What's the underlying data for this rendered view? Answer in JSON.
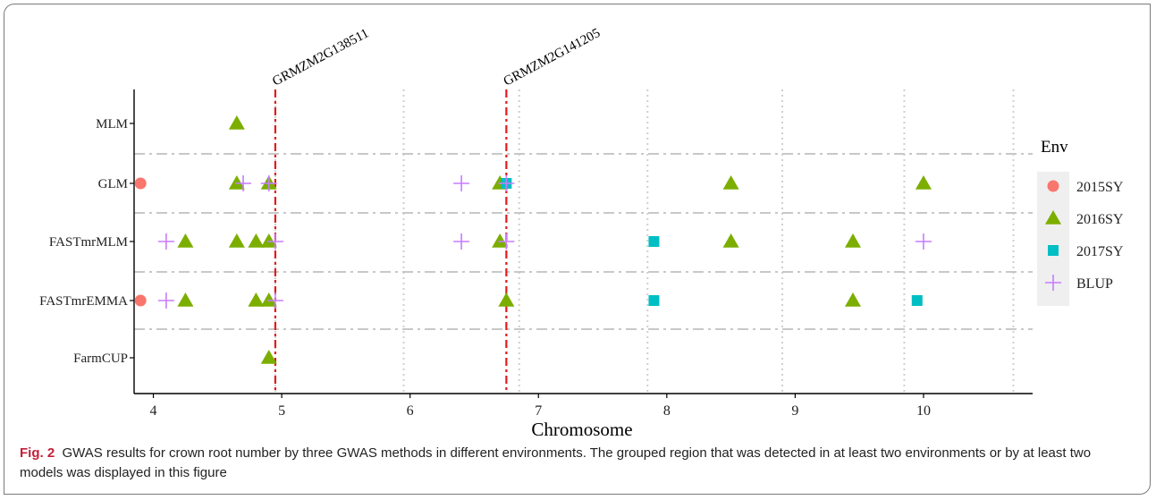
{
  "chart_data": {
    "type": "scatter",
    "title": "",
    "xlabel": "Chromosome",
    "ylabel": "",
    "xlim": [
      3.45,
      10.45
    ],
    "x_ticks": [
      4,
      5,
      6,
      7,
      8,
      9,
      10
    ],
    "x_tick_positions": [
      3.6,
      4.6,
      5.6,
      6.6,
      7.6,
      8.6,
      9.6
    ],
    "x_tick_labels": [
      "4",
      "5",
      "6",
      "7",
      "8",
      "9",
      "10"
    ],
    "categories": [
      "MLM",
      "GLM",
      "FASTmrMLM",
      "FASTmrEMMA",
      "FarmCUP"
    ],
    "grid": true,
    "legend": {
      "title": "Env",
      "position": "right",
      "entries": [
        {
          "name": "2015SY",
          "shape": "circle",
          "color": "#f8766d"
        },
        {
          "name": "2016SY",
          "shape": "triangle",
          "color": "#7cae00"
        },
        {
          "name": "2017SY",
          "shape": "square",
          "color": "#00bfc4"
        },
        {
          "name": "BLUP",
          "shape": "plus",
          "color": "#c77cff"
        }
      ]
    },
    "reference_lines": [
      {
        "label": "GRMZM2G138511",
        "x": 4.55,
        "color": "#e41a1c"
      },
      {
        "label": "GRMZM2G141205",
        "x": 6.35,
        "color": "#e41a1c"
      }
    ],
    "series": [
      {
        "name": "2015SY",
        "points": [
          {
            "x": 3.5,
            "y": "GLM"
          },
          {
            "x": 3.5,
            "y": "FASTmrEMMA"
          }
        ]
      },
      {
        "name": "2016SY",
        "points": [
          {
            "x": 4.25,
            "y": "MLM"
          },
          {
            "x": 4.25,
            "y": "GLM"
          },
          {
            "x": 4.5,
            "y": "GLM"
          },
          {
            "x": 6.3,
            "y": "GLM"
          },
          {
            "x": 8.1,
            "y": "GLM"
          },
          {
            "x": 9.6,
            "y": "GLM"
          },
          {
            "x": 3.85,
            "y": "FASTmrMLM"
          },
          {
            "x": 4.25,
            "y": "FASTmrMLM"
          },
          {
            "x": 4.4,
            "y": "FASTmrMLM"
          },
          {
            "x": 4.5,
            "y": "FASTmrMLM"
          },
          {
            "x": 6.3,
            "y": "FASTmrMLM"
          },
          {
            "x": 8.1,
            "y": "FASTmrMLM"
          },
          {
            "x": 9.05,
            "y": "FASTmrMLM"
          },
          {
            "x": 3.85,
            "y": "FASTmrEMMA"
          },
          {
            "x": 4.4,
            "y": "FASTmrEMMA"
          },
          {
            "x": 4.5,
            "y": "FASTmrEMMA"
          },
          {
            "x": 6.35,
            "y": "FASTmrEMMA"
          },
          {
            "x": 9.05,
            "y": "FASTmrEMMA"
          },
          {
            "x": 4.5,
            "y": "FarmCUP"
          }
        ]
      },
      {
        "name": "2017SY",
        "points": [
          {
            "x": 6.35,
            "y": "GLM"
          },
          {
            "x": 7.5,
            "y": "FASTmrMLM"
          },
          {
            "x": 7.5,
            "y": "FASTmrEMMA"
          },
          {
            "x": 9.55,
            "y": "FASTmrEMMA"
          }
        ]
      },
      {
        "name": "BLUP",
        "points": [
          {
            "x": 4.3,
            "y": "GLM"
          },
          {
            "x": 4.5,
            "y": "GLM"
          },
          {
            "x": 6.0,
            "y": "GLM"
          },
          {
            "x": 6.35,
            "y": "GLM"
          },
          {
            "x": 3.7,
            "y": "FASTmrMLM"
          },
          {
            "x": 4.55,
            "y": "FASTmrMLM"
          },
          {
            "x": 6.0,
            "y": "FASTmrMLM"
          },
          {
            "x": 6.35,
            "y": "FASTmrMLM"
          },
          {
            "x": 9.6,
            "y": "FASTmrMLM"
          },
          {
            "x": 3.7,
            "y": "FASTmrEMMA"
          },
          {
            "x": 4.55,
            "y": "FASTmrEMMA"
          }
        ]
      }
    ]
  },
  "caption": {
    "label": "Fig. 2",
    "text": "GWAS results for crown root number by three GWAS methods in different environments. The grouped region that was detected in at least two environments or by at least two models was displayed in this figure"
  }
}
